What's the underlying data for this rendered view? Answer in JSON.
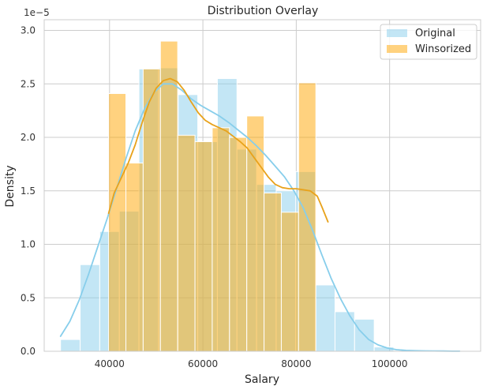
{
  "chart_data": {
    "type": "bar",
    "title": "Distribution Overlay",
    "xlabel": "Salary",
    "ylabel": "Density",
    "y_offset_label": "1e−5",
    "xlim": [
      26000,
      119500
    ],
    "ylim": [
      0,
      3.1
    ],
    "xticks": [
      40000,
      60000,
      80000,
      100000
    ],
    "yticks": [
      0.0,
      0.5,
      1.0,
      1.5,
      2.0,
      2.5,
      3.0
    ],
    "grid": true,
    "legend_position": "top-right",
    "series": [
      {
        "name": "Original",
        "color": "#87ceeb",
        "bins": [
          {
            "x0": 29500,
            "x1": 33700,
            "value": 0.11
          },
          {
            "x0": 33700,
            "x1": 37900,
            "value": 0.81
          },
          {
            "x0": 37900,
            "x1": 42100,
            "value": 1.12
          },
          {
            "x0": 42100,
            "x1": 46300,
            "value": 1.31
          },
          {
            "x0": 46300,
            "x1": 50500,
            "value": 2.64
          },
          {
            "x0": 50500,
            "x1": 54700,
            "value": 2.65
          },
          {
            "x0": 54700,
            "x1": 58900,
            "value": 2.4
          },
          {
            "x0": 58900,
            "x1": 63100,
            "value": 1.96
          },
          {
            "x0": 63100,
            "x1": 67300,
            "value": 2.55
          },
          {
            "x0": 67300,
            "x1": 71500,
            "value": 1.89
          },
          {
            "x0": 71500,
            "x1": 75700,
            "value": 1.56
          },
          {
            "x0": 75700,
            "x1": 79900,
            "value": 1.5
          },
          {
            "x0": 79900,
            "x1": 84100,
            "value": 1.68
          },
          {
            "x0": 84100,
            "x1": 88300,
            "value": 0.62
          },
          {
            "x0": 88300,
            "x1": 92500,
            "value": 0.37
          },
          {
            "x0": 92500,
            "x1": 96700,
            "value": 0.3
          },
          {
            "x0": 96700,
            "x1": 100900,
            "value": 0.04
          },
          {
            "x0": 100900,
            "x1": 105100,
            "value": 0.0
          },
          {
            "x0": 105100,
            "x1": 109300,
            "value": 0.0
          },
          {
            "x0": 109300,
            "x1": 113500,
            "value": 0.0
          }
        ],
        "kde": {
          "x": [
            29500,
            31500,
            33500,
            35500,
            37500,
            39500,
            41500,
            43500,
            45500,
            47500,
            49500,
            51500,
            53500,
            55500,
            57500,
            59500,
            61500,
            63500,
            65500,
            67500,
            69500,
            71500,
            73500,
            75500,
            77500,
            79500,
            81500,
            83500,
            85500,
            87500,
            89500,
            91500,
            93500,
            95500,
            97500,
            99500,
            101500,
            103500,
            105500,
            107500,
            109500,
            111500,
            113500,
            115000
          ],
          "y": [
            0.14,
            0.28,
            0.48,
            0.72,
            0.98,
            1.24,
            1.52,
            1.8,
            2.06,
            2.27,
            2.42,
            2.5,
            2.5,
            2.44,
            2.36,
            2.3,
            2.25,
            2.2,
            2.14,
            2.07,
            2.0,
            1.92,
            1.83,
            1.73,
            1.63,
            1.5,
            1.34,
            1.13,
            0.9,
            0.68,
            0.49,
            0.33,
            0.2,
            0.11,
            0.06,
            0.03,
            0.015,
            0.008,
            0.005,
            0.004,
            0.003,
            0.002,
            0.001,
            0.001
          ]
        }
      },
      {
        "name": "Winsorized",
        "color": "#ffa500",
        "bins": [
          {
            "x0": 39800,
            "x1": 43500,
            "value": 2.41
          },
          {
            "x0": 43500,
            "x1": 47200,
            "value": 1.76
          },
          {
            "x0": 47200,
            "x1": 50900,
            "value": 2.64
          },
          {
            "x0": 50900,
            "x1": 54600,
            "value": 2.9
          },
          {
            "x0": 54600,
            "x1": 58300,
            "value": 2.02
          },
          {
            "x0": 58300,
            "x1": 62000,
            "value": 1.96
          },
          {
            "x0": 62000,
            "x1": 65700,
            "value": 2.09
          },
          {
            "x0": 65700,
            "x1": 69400,
            "value": 2.0
          },
          {
            "x0": 69400,
            "x1": 73100,
            "value": 2.2
          },
          {
            "x0": 73100,
            "x1": 76800,
            "value": 1.48
          },
          {
            "x0": 76800,
            "x1": 80500,
            "value": 1.3
          },
          {
            "x0": 80500,
            "x1": 84200,
            "value": 2.51
          },
          {
            "x0": 84200,
            "x1": 87000,
            "value": 0.0
          }
        ],
        "kde": {
          "x": [
            39800,
            41000,
            42500,
            44000,
            45500,
            47000,
            48500,
            50000,
            51500,
            53000,
            54500,
            56000,
            57500,
            59000,
            60500,
            62000,
            63500,
            65000,
            66500,
            68000,
            69500,
            71000,
            72500,
            74000,
            75500,
            77000,
            78500,
            80000,
            81500,
            83000,
            84500,
            85500,
            86800
          ],
          "y": [
            1.29,
            1.48,
            1.62,
            1.76,
            1.93,
            2.14,
            2.33,
            2.46,
            2.53,
            2.55,
            2.52,
            2.44,
            2.33,
            2.23,
            2.16,
            2.12,
            2.09,
            2.06,
            2.01,
            1.96,
            1.9,
            1.81,
            1.72,
            1.63,
            1.56,
            1.53,
            1.52,
            1.52,
            1.51,
            1.5,
            1.45,
            1.35,
            1.21
          ]
        }
      }
    ]
  }
}
